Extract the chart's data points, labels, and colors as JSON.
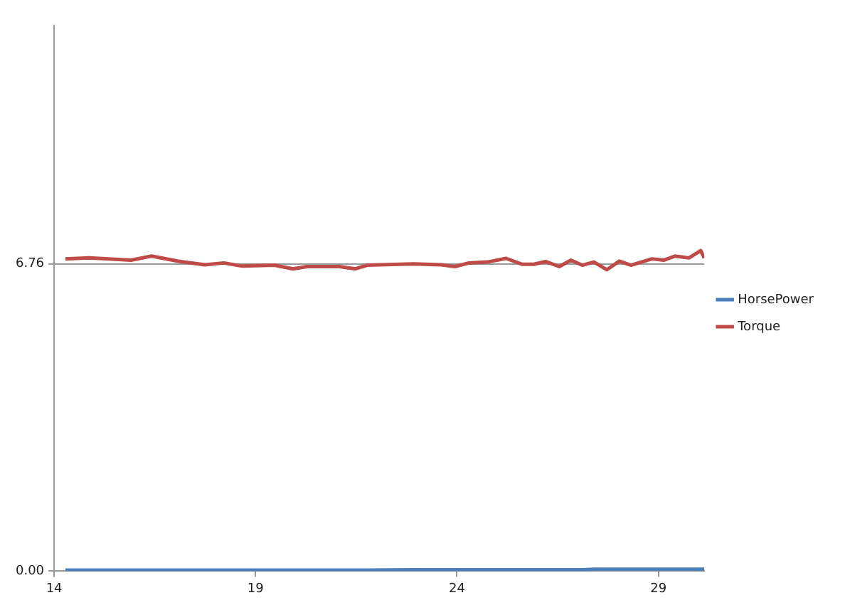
{
  "chart_data": {
    "type": "line",
    "x": [
      14.28,
      14.87,
      15.91,
      16.42,
      17.06,
      17.75,
      18.21,
      18.67,
      19.47,
      19.93,
      20.28,
      21.08,
      21.48,
      21.77,
      22.92,
      23.61,
      23.95,
      24.3,
      24.76,
      25.22,
      25.62,
      25.91,
      26.2,
      26.54,
      26.83,
      27.11,
      27.4,
      27.72,
      28.03,
      28.32,
      28.84,
      29.13,
      29.41,
      29.76,
      30.05,
      30.14
    ],
    "series": [
      {
        "name": "HorsePower",
        "color": "#4a7ebb",
        "values": [
          0.02,
          0.02,
          0.02,
          0.02,
          0.02,
          0.02,
          0.02,
          0.02,
          0.02,
          0.02,
          0.02,
          0.02,
          0.02,
          0.02,
          0.03,
          0.03,
          0.03,
          0.03,
          0.03,
          0.03,
          0.03,
          0.03,
          0.03,
          0.03,
          0.03,
          0.03,
          0.04,
          0.04,
          0.04,
          0.04,
          0.04,
          0.04,
          0.04,
          0.04,
          0.04,
          0.04
        ]
      },
      {
        "name": "Torque",
        "color": "#be4b48",
        "values": [
          6.87,
          6.89,
          6.84,
          6.93,
          6.82,
          6.74,
          6.78,
          6.71,
          6.73,
          6.65,
          6.7,
          6.7,
          6.65,
          6.73,
          6.76,
          6.74,
          6.7,
          6.78,
          6.8,
          6.88,
          6.75,
          6.75,
          6.81,
          6.7,
          6.84,
          6.73,
          6.8,
          6.63,
          6.82,
          6.73,
          6.87,
          6.84,
          6.93,
          6.89,
          7.05,
          6.89
        ]
      }
    ],
    "xlim": [
      14,
      30.14
    ],
    "xticks": [
      14,
      19,
      24,
      29
    ],
    "ylim": [
      0,
      12
    ],
    "yticks": [
      {
        "value": 0,
        "label": "0.00"
      },
      {
        "value": 6.76,
        "label": "6.76"
      }
    ],
    "grid": "y",
    "legend": "right",
    "marker": "none",
    "line_style": "solid"
  }
}
